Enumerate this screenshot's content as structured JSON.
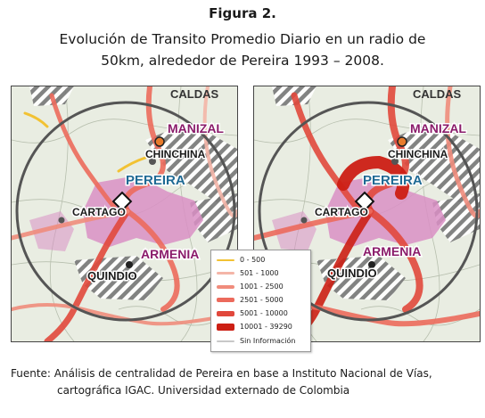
{
  "figure": {
    "number": "Figura 2.",
    "title_line1": "Evolución de Transito Promedio Diario en un radio de",
    "title_line2": "50km, alrededor de Pereira 1993 – 2008."
  },
  "maps": {
    "left": {
      "year": "1993",
      "labels": {
        "caldas": "CALDAS",
        "manizales": "MANIZAL",
        "chinchina": "CHINCHINA",
        "pereira": "PEREIRA",
        "cartago": "CARTAGO",
        "armenia": "ARMENIA",
        "quindio": "QUINDIO"
      }
    },
    "right": {
      "year": "2008",
      "labels": {
        "caldas": "CALDAS",
        "manizales": "MANIZAL",
        "chinchina": "CHINCHINA",
        "pereira": "PEREIRA",
        "cartago": "CARTAGO",
        "armenia": "ARMENIA",
        "quindio": "QUINDIO"
      }
    }
  },
  "colors": {
    "pereira_area": "#d98fc4",
    "road_low": "#f2c233",
    "road_1": "#f4b5a7",
    "road_2": "#f08c7c",
    "road_3": "#ec6a5c",
    "road_4": "#e1483c",
    "road_5": "#cc1f14",
    "city_label_dark": "#1a1a1a",
    "city_label_pereira": "#1f6a94",
    "city_label_dept": "#8a1b6a",
    "no_info": "#c8c8c8"
  },
  "legend": {
    "items": [
      {
        "label": "0 - 500",
        "color": "#f2c233",
        "thickness": 2
      },
      {
        "label": "501 - 1000",
        "color": "#f4b5a7",
        "thickness": 3
      },
      {
        "label": "1001 - 2500",
        "color": "#f08c7c",
        "thickness": 4
      },
      {
        "label": "2501 - 5000",
        "color": "#ec6a5c",
        "thickness": 5
      },
      {
        "label": "5001 - 10000",
        "color": "#e1483c",
        "thickness": 6
      },
      {
        "label": "10001 - 39290",
        "color": "#cc1f14",
        "thickness": 8
      },
      {
        "label": "Sin Información",
        "color": "#c8c8c8",
        "thickness": 2
      }
    ]
  },
  "source": {
    "line1": "Fuente: Análisis de centralidad de Pereira en base a Instituto Nacional de Vías,",
    "line2": "cartográfica IGAC. Universidad externado de  Colombia"
  }
}
